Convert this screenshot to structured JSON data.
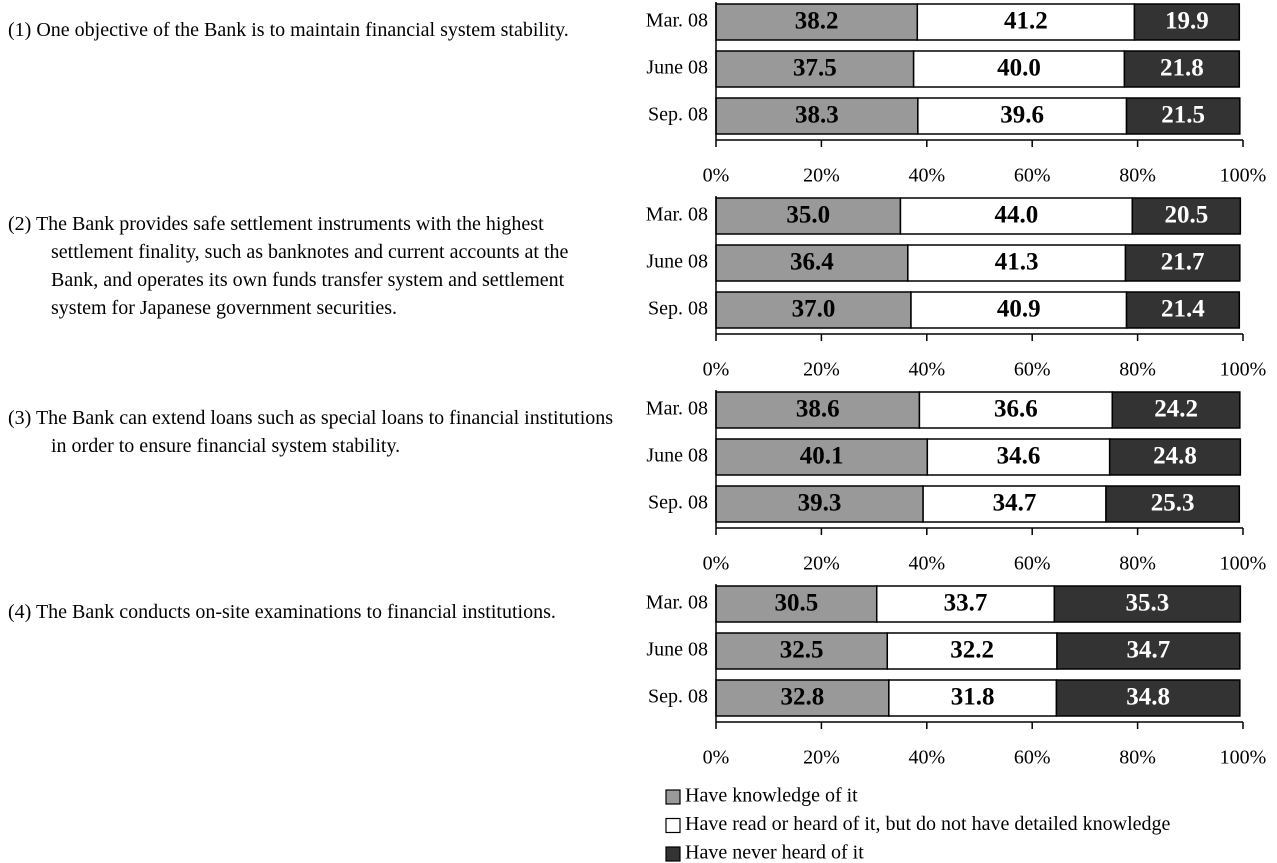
{
  "chart_data": [
    {
      "type": "stacked-barh",
      "title": "(1) One objective of the Bank is to maintain financial system stability.",
      "categories": [
        "Mar. 08",
        "June 08",
        "Sep. 08"
      ],
      "series": [
        {
          "values": [
            38.2,
            37.5,
            38.3
          ],
          "value_labels": [
            "38.2",
            "37.5",
            "38.3"
          ]
        },
        {
          "values": [
            41.2,
            40.0,
            39.6
          ],
          "value_labels": [
            "41.2",
            "40.0",
            "39.6"
          ]
        },
        {
          "values": [
            19.9,
            21.8,
            21.5
          ],
          "value_labels": [
            "19.9",
            "21.8",
            "21.5"
          ]
        }
      ],
      "xlim": [
        0,
        100
      ],
      "xticks": [
        {
          "value": 0,
          "label": "0%"
        },
        {
          "value": 20,
          "label": "20%"
        },
        {
          "value": 40,
          "label": "40%"
        },
        {
          "value": 60,
          "label": "60%"
        },
        {
          "value": 80,
          "label": "80%"
        },
        {
          "value": 100,
          "label": "100%"
        }
      ]
    },
    {
      "type": "stacked-barh",
      "title": "(2) The Bank provides safe settlement instruments with the highest settlement finality, such as banknotes and current accounts at the Bank, and operates its own funds transfer system and settlement system for Japanese government securities.",
      "categories": [
        "Mar. 08",
        "June 08",
        "Sep. 08"
      ],
      "series": [
        {
          "values": [
            35.0,
            36.4,
            37.0
          ],
          "value_labels": [
            "35.0",
            "36.4",
            "37.0"
          ]
        },
        {
          "values": [
            44.0,
            41.3,
            40.9
          ],
          "value_labels": [
            "44.0",
            "41.3",
            "40.9"
          ]
        },
        {
          "values": [
            20.5,
            21.7,
            21.4
          ],
          "value_labels": [
            "20.5",
            "21.7",
            "21.4"
          ]
        }
      ],
      "xlim": [
        0,
        100
      ],
      "xticks": [
        {
          "value": 0,
          "label": "0%"
        },
        {
          "value": 20,
          "label": "20%"
        },
        {
          "value": 40,
          "label": "40%"
        },
        {
          "value": 60,
          "label": "60%"
        },
        {
          "value": 80,
          "label": "80%"
        },
        {
          "value": 100,
          "label": "100%"
        }
      ]
    },
    {
      "type": "stacked-barh",
      "title": "(3) The Bank can extend loans such as special loans to financial institutions in order to ensure financial system stability.",
      "categories": [
        "Mar. 08",
        "June 08",
        "Sep. 08"
      ],
      "series": [
        {
          "values": [
            38.6,
            40.1,
            39.3
          ],
          "value_labels": [
            "38.6",
            "40.1",
            "39.3"
          ]
        },
        {
          "values": [
            36.6,
            34.6,
            34.7
          ],
          "value_labels": [
            "36.6",
            "34.6",
            "34.7"
          ]
        },
        {
          "values": [
            24.2,
            24.8,
            25.3
          ],
          "value_labels": [
            "24.2",
            "24.8",
            "25.3"
          ]
        }
      ],
      "xlim": [
        0,
        100
      ],
      "xticks": [
        {
          "value": 0,
          "label": "0%"
        },
        {
          "value": 20,
          "label": "20%"
        },
        {
          "value": 40,
          "label": "40%"
        },
        {
          "value": 60,
          "label": "60%"
        },
        {
          "value": 80,
          "label": "80%"
        },
        {
          "value": 100,
          "label": "100%"
        }
      ]
    },
    {
      "type": "stacked-barh",
      "title": "(4) The Bank conducts on-site examinations to financial institutions.",
      "categories": [
        "Mar. 08",
        "June 08",
        "Sep. 08"
      ],
      "series": [
        {
          "values": [
            30.5,
            32.5,
            32.8
          ],
          "value_labels": [
            "30.5",
            "32.5",
            "32.8"
          ]
        },
        {
          "values": [
            33.7,
            32.2,
            31.8
          ],
          "value_labels": [
            "33.7",
            "32.2",
            "31.8"
          ]
        },
        {
          "values": [
            35.3,
            34.7,
            34.8
          ],
          "value_labels": [
            "35.3",
            "34.7",
            "34.8"
          ]
        }
      ],
      "xlim": [
        0,
        100
      ],
      "xticks": [
        {
          "value": 0,
          "label": "0%"
        },
        {
          "value": 20,
          "label": "20%"
        },
        {
          "value": 40,
          "label": "40%"
        },
        {
          "value": 60,
          "label": "60%"
        },
        {
          "value": 80,
          "label": "80%"
        },
        {
          "value": 100,
          "label": "100%"
        }
      ]
    }
  ],
  "legend": [
    {
      "name": "Have knowledge of it",
      "color": "#999999"
    },
    {
      "name": "Have read or heard of it, but do not have detailed knowledge",
      "color": "#ffffff"
    },
    {
      "name": "Have never heard of it",
      "color": "#333333"
    }
  ]
}
